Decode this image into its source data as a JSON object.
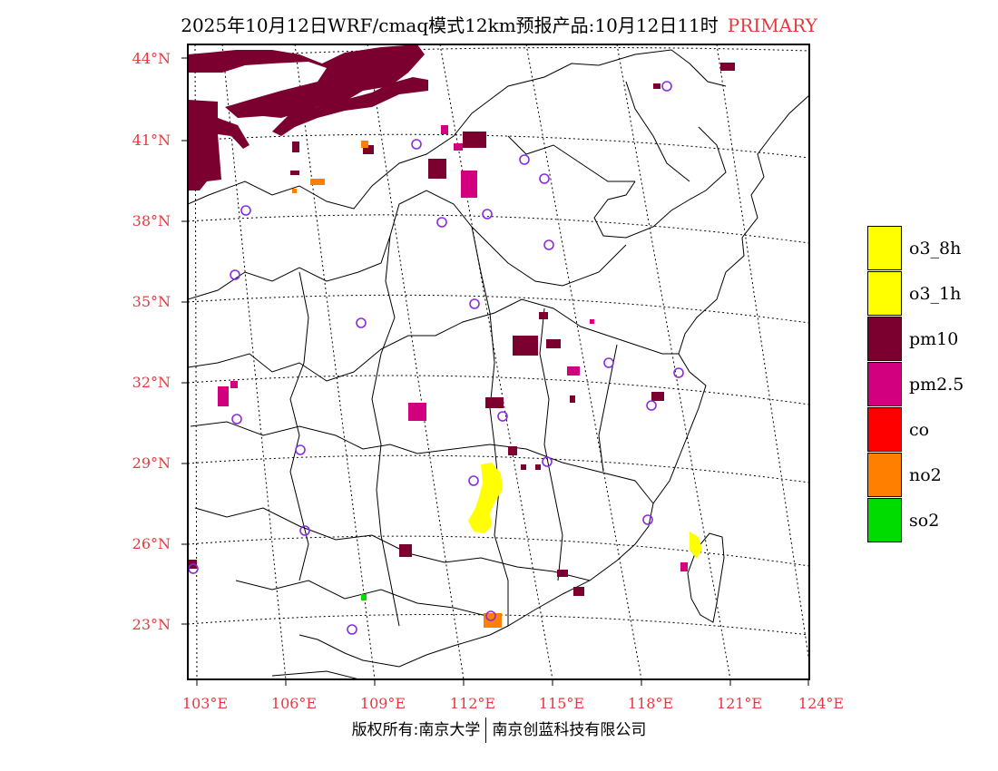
{
  "title": {
    "main": "2025年10月12日WRF/cmaq模式12km预报产品:10月12日11时",
    "tag": "PRIMARY"
  },
  "axes": {
    "lat_labels": [
      "44°N",
      "41°N",
      "38°N",
      "35°N",
      "32°N",
      "29°N",
      "26°N",
      "23°N"
    ],
    "lon_labels": [
      "103°E",
      "106°E",
      "109°E",
      "112°E",
      "115°E",
      "118°E",
      "121°E",
      "124°E"
    ]
  },
  "legend": [
    {
      "label": "o3_8h",
      "color": "#ffff00"
    },
    {
      "label": "o3_1h",
      "color": "#ffff00"
    },
    {
      "label": "pm10",
      "color": "#7b0030"
    },
    {
      "label": "pm2.5",
      "color": "#d2007f"
    },
    {
      "label": "co",
      "color": "#ff0000"
    },
    {
      "label": "no2",
      "color": "#ff7f00"
    },
    {
      "label": "so2",
      "color": "#00dc00"
    }
  ],
  "copyright": {
    "left": "版权所有:南京大学",
    "right": "南京创蓝科技有限公司"
  },
  "colors": {
    "pm10": "#7b0030",
    "pm25": "#d2007f",
    "o3": "#ffff00",
    "no2": "#ff7f00",
    "so2": "#00dc00",
    "station": "#8a2be2",
    "axis_label": "#e8383d"
  }
}
